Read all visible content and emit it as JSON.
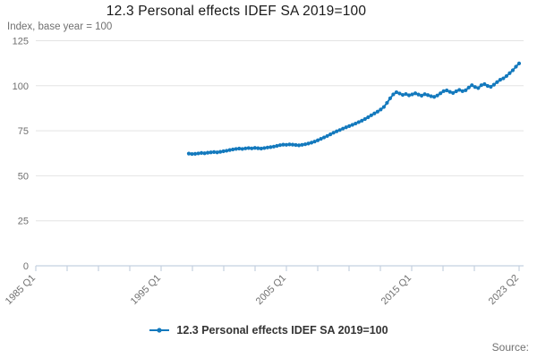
{
  "header": {
    "title": "12.3 Personal effects IDEF SA 2019=100",
    "subtitle": "Index, base year = 100"
  },
  "legend": {
    "label": "12.3 Personal effects IDEF SA 2019=100"
  },
  "footer": {
    "source_label": "Source:"
  },
  "colors": {
    "line": "#1379bd",
    "grid": "#e4e4e4",
    "axis": "#c4d0e0",
    "text_muted": "#707070"
  },
  "chart_data": {
    "type": "line",
    "title": "12.3 Personal effects IDEF SA 2019=100",
    "subtitle": "Index, base year = 100",
    "grid": "horizontal",
    "legend_position": "bottom",
    "ylim": [
      0,
      125
    ],
    "y_ticks": [
      0,
      25,
      50,
      75,
      100,
      125
    ],
    "x_tick_labels": [
      "1985 Q1",
      "1995 Q1",
      "2005 Q1",
      "2015 Q1",
      "2023 Q2"
    ],
    "x_axis_range": [
      "1985 Q1",
      "2023 Q2"
    ],
    "x_minor_tick_interval_years": 2.5,
    "series": [
      {
        "name": "12.3 Personal effects IDEF SA 2019=100",
        "start_period": "1997 Q1",
        "end_period": "2023 Q2",
        "frequency": "quarterly",
        "values": [
          62.3,
          62.1,
          62.2,
          62.4,
          62.7,
          62.5,
          62.8,
          63.0,
          63.2,
          63.0,
          63.3,
          63.6,
          63.9,
          64.3,
          64.6,
          64.9,
          65.1,
          64.9,
          65.2,
          65.4,
          65.2,
          65.5,
          65.3,
          65.1,
          65.4,
          65.7,
          65.9,
          66.2,
          66.6,
          67.0,
          67.3,
          67.2,
          67.4,
          67.3,
          67.1,
          66.9,
          67.2,
          67.5,
          67.9,
          68.4,
          69.0,
          69.7,
          70.5,
          71.3,
          72.1,
          73.0,
          73.9,
          74.7,
          75.4,
          76.2,
          76.9,
          77.6,
          78.3,
          79.0,
          79.8,
          80.6,
          81.5,
          82.5,
          83.6,
          84.6,
          85.6,
          86.8,
          88.2,
          90.5,
          93.0,
          95.2,
          96.4,
          95.7,
          94.9,
          95.4,
          94.7,
          95.2,
          95.8,
          95.1,
          94.5,
          95.3,
          94.8,
          94.2,
          93.8,
          94.6,
          95.8,
          97.0,
          97.4,
          96.6,
          96.0,
          96.9,
          97.7,
          97.0,
          97.5,
          99.0,
          100.3,
          99.3,
          98.7,
          100.3,
          100.9,
          99.9,
          99.4,
          100.6,
          102.0,
          103.3,
          104.1,
          105.4,
          107.0,
          108.6,
          110.6,
          112.4
        ]
      }
    ]
  }
}
